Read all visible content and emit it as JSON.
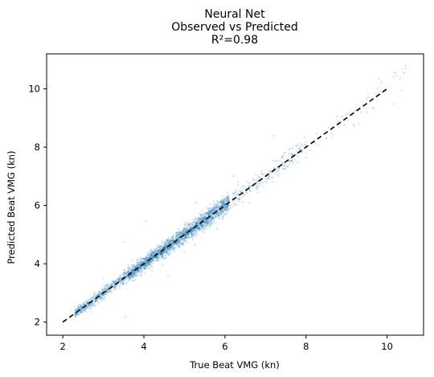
{
  "chart_data": {
    "type": "scatter",
    "title_lines": [
      "Neural Net",
      "Observed vs Predicted",
      "R²=0.98"
    ],
    "xlabel": "True Beat VMG (kn)",
    "ylabel": "Predicted Beat VMG (kn)",
    "xlim": [
      1.6,
      10.9
    ],
    "ylim": [
      1.55,
      11.2
    ],
    "x_ticks": [
      2,
      4,
      6,
      8,
      10
    ],
    "y_ticks": [
      2,
      4,
      6,
      8,
      10
    ],
    "grid": false,
    "legend": "none",
    "point_color": "#1f77b4",
    "point_alpha": 0.2,
    "reference_line": {
      "style": "dashed",
      "color": "#000000",
      "points": [
        [
          2,
          2
        ],
        [
          10,
          10
        ]
      ]
    },
    "series": [
      {
        "points": [
          [
            2.3,
            2.52
          ],
          [
            2.45,
            2.5
          ],
          [
            2.5,
            2.65
          ],
          [
            2.6,
            2.62
          ],
          [
            2.7,
            2.8
          ],
          [
            2.8,
            2.78
          ],
          [
            2.9,
            2.95
          ],
          [
            3.0,
            3.05
          ],
          [
            3.1,
            3.12
          ],
          [
            3.2,
            3.28
          ],
          [
            3.3,
            3.32
          ],
          [
            3.4,
            3.48
          ],
          [
            3.5,
            3.52
          ],
          [
            3.6,
            3.7
          ],
          [
            3.7,
            3.72
          ],
          [
            3.8,
            3.85
          ],
          [
            3.9,
            3.95
          ],
          [
            4.0,
            4.05
          ],
          [
            4.1,
            4.15
          ],
          [
            4.2,
            4.2
          ],
          [
            4.3,
            4.35
          ],
          [
            4.4,
            4.4
          ],
          [
            4.5,
            4.55
          ],
          [
            4.6,
            4.62
          ],
          [
            4.7,
            4.7
          ],
          [
            4.8,
            4.85
          ],
          [
            4.9,
            4.92
          ],
          [
            5.0,
            5.0
          ],
          [
            5.1,
            5.12
          ],
          [
            5.2,
            5.2
          ],
          [
            5.3,
            5.35
          ],
          [
            5.4,
            5.4
          ],
          [
            5.5,
            5.55
          ],
          [
            5.6,
            5.62
          ],
          [
            5.7,
            5.75
          ],
          [
            5.8,
            5.85
          ],
          [
            5.9,
            5.92
          ],
          [
            6.0,
            6.05
          ],
          [
            6.2,
            6.25
          ],
          [
            6.4,
            6.45
          ],
          [
            6.6,
            6.65
          ],
          [
            6.8,
            6.85
          ],
          [
            7.0,
            7.0
          ],
          [
            7.2,
            7.25
          ],
          [
            7.4,
            7.45
          ],
          [
            7.6,
            7.55
          ],
          [
            7.8,
            7.8
          ],
          [
            8.0,
            8.05
          ],
          [
            8.5,
            8.3
          ],
          [
            9.0,
            9.1
          ],
          [
            9.5,
            9.2
          ],
          [
            9.8,
            10.35
          ],
          [
            10.45,
            10.7
          ],
          [
            3.55,
            2.18
          ],
          [
            3.5,
            4.75
          ],
          [
            4.05,
            5.45
          ],
          [
            4.6,
            3.55
          ],
          [
            5.3,
            6.1
          ],
          [
            6.2,
            7.0
          ],
          [
            7.2,
            8.4
          ],
          [
            8.3,
            8.05
          ],
          [
            8.9,
            9.05
          ],
          [
            9.3,
            8.8
          ],
          [
            3.0,
            3.5
          ],
          [
            2.7,
            2.35
          ],
          [
            4.2,
            3.75
          ],
          [
            5.0,
            4.4
          ],
          [
            5.8,
            5.2
          ],
          [
            6.6,
            6.1
          ]
        ]
      }
    ]
  }
}
